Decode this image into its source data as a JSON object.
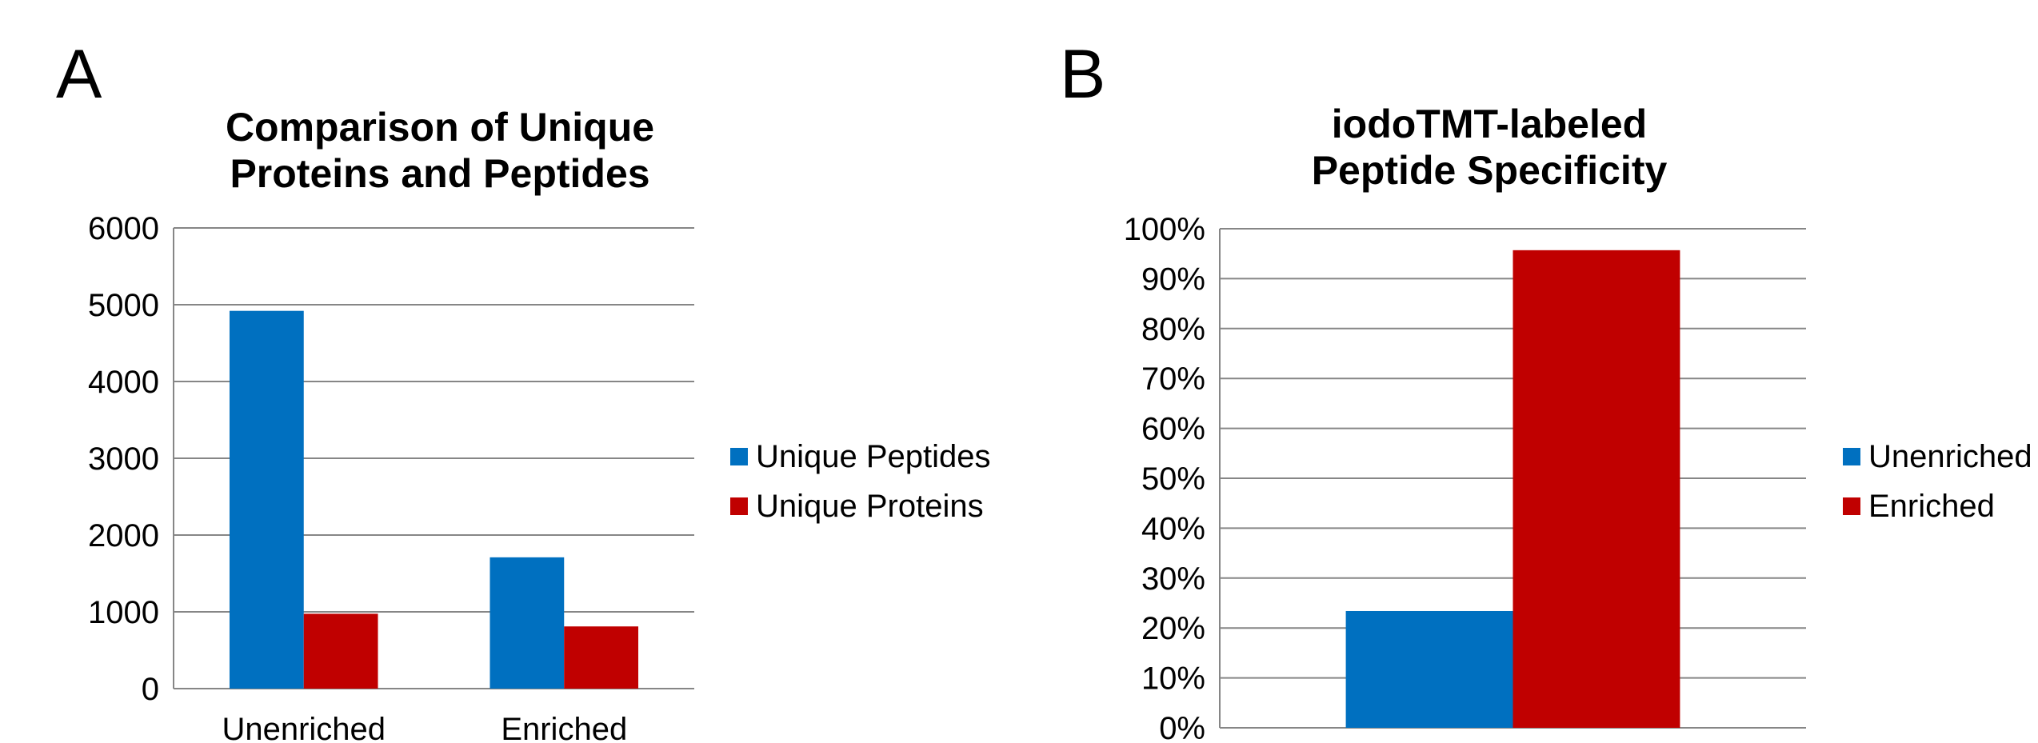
{
  "panels": [
    {
      "letter": "A"
    },
    {
      "letter": "B"
    }
  ],
  "chart_data": [
    {
      "type": "bar",
      "title_lines": [
        "Comparison of Unique",
        "Proteins and Peptides"
      ],
      "categories": [
        "Unenriched",
        "Enriched"
      ],
      "series": [
        {
          "name": "Unique Peptides",
          "color": "#0070C0",
          "values": [
            4920,
            1710
          ]
        },
        {
          "name": "Unique Proteins",
          "color": "#C00000",
          "values": [
            975,
            810
          ]
        }
      ],
      "ylim": [
        0,
        6000
      ],
      "yticks": [
        0,
        1000,
        2000,
        3000,
        4000,
        5000,
        6000
      ],
      "ytick_labels": [
        "0",
        "1000",
        "2000",
        "3000",
        "4000",
        "5000",
        "6000"
      ],
      "grid": true,
      "legend": "right"
    },
    {
      "type": "bar",
      "title_lines": [
        "iodoTMT-labeled",
        "Peptide Specificity"
      ],
      "categories": [
        ""
      ],
      "series": [
        {
          "name": "Unenriched",
          "color": "#0070C0",
          "values": [
            23.4
          ]
        },
        {
          "name": "Enriched",
          "color": "#C00000",
          "values": [
            95.7
          ]
        }
      ],
      "ylim": [
        0,
        100
      ],
      "yticks": [
        0,
        10,
        20,
        30,
        40,
        50,
        60,
        70,
        80,
        90,
        100
      ],
      "ytick_labels": [
        "0%",
        "10%",
        "20%",
        "30%",
        "40%",
        "50%",
        "60%",
        "70%",
        "80%",
        "90%",
        "100%"
      ],
      "grid": true,
      "legend": "right"
    }
  ]
}
